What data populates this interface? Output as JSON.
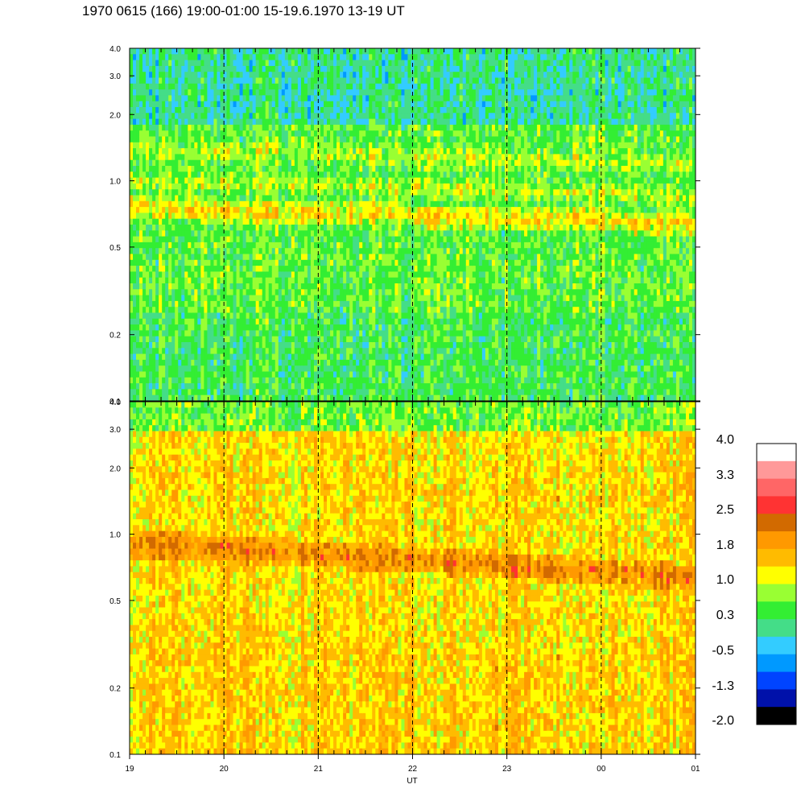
{
  "title": "1970 0615 (166) 19:00-01:00 15-19.6.1970  13-19 UT",
  "chart_data": [
    {
      "type": "heatmap",
      "panel": "top",
      "y_scale": "log",
      "ylim": [
        0.1,
        4.0
      ],
      "y_ticks": [
        "0.1",
        "0.2",
        "0.5",
        "1.0",
        "2.0",
        "3.0",
        "4.0"
      ],
      "x_ticks": [
        "19",
        "20",
        "21",
        "22",
        "23",
        "00",
        "01"
      ],
      "dashed_hour_lines": [
        "20",
        "21",
        "22",
        "23",
        "00"
      ],
      "bands": [
        {
          "freq": 1.4,
          "level": 1.0
        },
        {
          "freq": 0.75,
          "level": 1.4
        },
        {
          "freq": 1.0,
          "level": 1.0
        }
      ],
      "background_level_low_freq": 0.3,
      "background_level_high_freq": 0.0
    },
    {
      "type": "heatmap",
      "panel": "bottom",
      "y_scale": "log",
      "ylim": [
        0.1,
        4.0
      ],
      "y_ticks": [
        "0.1",
        "0.2",
        "0.5",
        "1.0",
        "2.0",
        "3.0",
        "4.0"
      ],
      "x_ticks": [
        "19",
        "20",
        "21",
        "22",
        "23",
        "00",
        "01"
      ],
      "xlabel": "UT",
      "dashed_hour_lines": [
        "20",
        "21",
        "22",
        "23",
        "00"
      ],
      "bands": [
        {
          "freq": 0.9,
          "level": 2.2
        },
        {
          "freq": 1.9,
          "level": 1.6
        }
      ],
      "background_level": 1.4
    }
  ],
  "colorbar": {
    "labels": [
      "4.0",
      "3.3",
      "2.5",
      "1.8",
      "1.0",
      "0.3",
      "-0.5",
      "-1.3",
      "-2.0"
    ],
    "colors": [
      "#ffffff",
      "#ff9999",
      "#ff6666",
      "#ff3333",
      "#d26a00",
      "#ff9900",
      "#ffbb00",
      "#ffff00",
      "#99ff33",
      "#33ee33",
      "#44dd88",
      "#33ccff",
      "#0099ff",
      "#0044ff",
      "#0011aa",
      "#000000"
    ]
  }
}
